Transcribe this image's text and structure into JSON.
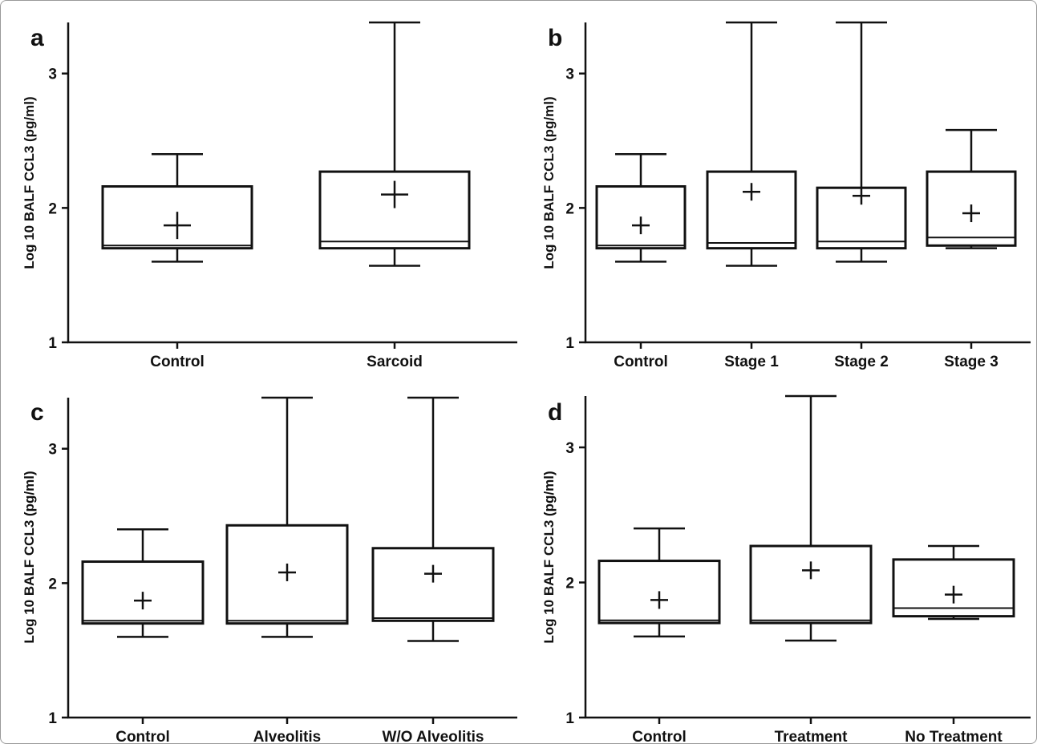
{
  "chart_data": [
    {
      "panel": "a",
      "type": "box",
      "ylabel": "Log 10 BALF CCL3 (pg/ml)",
      "ylim": [
        1,
        3.38
      ],
      "yticks": [
        1,
        2,
        3
      ],
      "categories": [
        "Control",
        "Sarcoid"
      ],
      "boxes": [
        {
          "min": 1.6,
          "q1": 1.7,
          "median": 1.72,
          "q3": 2.16,
          "max": 2.4,
          "mean": 1.87
        },
        {
          "min": 1.57,
          "q1": 1.7,
          "median": 1.75,
          "q3": 2.27,
          "max": 3.38,
          "mean": 2.1
        }
      ]
    },
    {
      "panel": "b",
      "type": "box",
      "ylabel": "Log 10 BALF CCL3 (pg/ml)",
      "ylim": [
        1,
        3.38
      ],
      "yticks": [
        1,
        2,
        3
      ],
      "categories": [
        "Control",
        "Stage 1",
        "Stage 2",
        "Stage 3"
      ],
      "boxes": [
        {
          "min": 1.6,
          "q1": 1.7,
          "median": 1.72,
          "q3": 2.16,
          "max": 2.4,
          "mean": 1.87
        },
        {
          "min": 1.57,
          "q1": 1.7,
          "median": 1.74,
          "q3": 2.27,
          "max": 3.38,
          "mean": 2.12
        },
        {
          "min": 1.6,
          "q1": 1.7,
          "median": 1.75,
          "q3": 2.15,
          "max": 3.38,
          "mean": 2.09
        },
        {
          "min": 1.7,
          "q1": 1.72,
          "median": 1.78,
          "q3": 2.27,
          "max": 2.58,
          "mean": 1.96
        }
      ]
    },
    {
      "panel": "c",
      "type": "box",
      "ylabel": "Log 10 BALF CCL3 (pg/ml)",
      "ylim": [
        1,
        3.38
      ],
      "yticks": [
        1,
        2,
        3
      ],
      "categories": [
        "Control",
        "Alveolitis",
        "W/O Alveolitis"
      ],
      "boxes": [
        {
          "min": 1.6,
          "q1": 1.7,
          "median": 1.72,
          "q3": 2.16,
          "max": 2.4,
          "mean": 1.87
        },
        {
          "min": 1.6,
          "q1": 1.7,
          "median": 1.72,
          "q3": 2.43,
          "max": 3.38,
          "mean": 2.08
        },
        {
          "min": 1.57,
          "q1": 1.72,
          "median": 1.74,
          "q3": 2.26,
          "max": 3.38,
          "mean": 2.07
        }
      ]
    },
    {
      "panel": "d",
      "type": "box",
      "ylabel": "Log 10 BALF CCL3 (pg/ml)",
      "ylim": [
        1,
        3.38
      ],
      "yticks": [
        1,
        2,
        3
      ],
      "categories": [
        "Control",
        "Treatment",
        "No Treatment"
      ],
      "boxes": [
        {
          "min": 1.6,
          "q1": 1.7,
          "median": 1.72,
          "q3": 2.16,
          "max": 2.4,
          "mean": 1.87
        },
        {
          "min": 1.57,
          "q1": 1.7,
          "median": 1.72,
          "q3": 2.27,
          "max": 3.38,
          "mean": 2.09
        },
        {
          "min": 1.73,
          "q1": 1.75,
          "median": 1.81,
          "q3": 2.17,
          "max": 2.27,
          "mean": 1.91
        }
      ]
    }
  ]
}
